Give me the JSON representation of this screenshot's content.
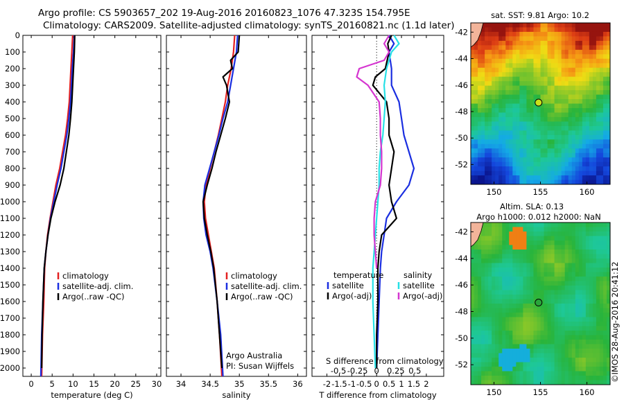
{
  "header": {
    "line1": "Argo profile: CS 5903657_202 19-Aug-2016 20160823_1076 47.323S 154.795E",
    "line2": "Climatology: CARS2009. Satellite-adjusted climatology: synTS_20160821.nc (1.1d later)"
  },
  "colors": {
    "climatology": "#e32020",
    "satellite": "#1a2ee0",
    "argo": "#000000",
    "cyan": "#26e0e6",
    "magenta": "#d535d0"
  },
  "chart_data": [
    {
      "type": "line",
      "xlabel": "temperature (deg C)",
      "xlim": [
        -2,
        31
      ],
      "ylim": [
        0,
        2050
      ],
      "xticks": [
        0,
        5,
        10,
        15,
        20,
        25,
        30
      ],
      "yticks": [
        0,
        100,
        200,
        300,
        400,
        500,
        600,
        700,
        800,
        900,
        1000,
        1100,
        1200,
        1300,
        1400,
        1500,
        1600,
        1700,
        1800,
        1900,
        2000
      ],
      "legend": [
        "climatology",
        "satellite-adj. clim.",
        "Argo(..raw -QC)"
      ],
      "series": [
        {
          "name": "climatology",
          "color": "#e32020",
          "depth": [
            0,
            100,
            200,
            300,
            400,
            500,
            600,
            700,
            800,
            900,
            1000,
            1100,
            1200,
            1300,
            1400,
            1600,
            1800,
            2050
          ],
          "values": [
            9.9,
            9.7,
            9.5,
            9.3,
            9.1,
            8.7,
            8.2,
            7.5,
            6.8,
            5.9,
            5.2,
            4.5,
            3.9,
            3.5,
            3.2,
            3.0,
            2.7,
            2.5
          ]
        },
        {
          "name": "satellite-adj. clim.",
          "color": "#1a2ee0",
          "depth": [
            0,
            100,
            200,
            300,
            400,
            500,
            600,
            700,
            800,
            900,
            1000,
            1100,
            1200,
            1300,
            1400,
            1600,
            1800,
            2050
          ],
          "values": [
            10.3,
            10.1,
            9.8,
            9.6,
            9.4,
            9.0,
            8.5,
            7.8,
            7.1,
            6.2,
            5.4,
            4.6,
            4.0,
            3.5,
            3.1,
            2.8,
            2.5,
            2.3
          ]
        },
        {
          "name": "Argo(..raw -QC)",
          "color": "#000000",
          "depth": [
            0,
            100,
            200,
            300,
            400,
            500,
            600,
            700,
            800,
            900,
            1000,
            1100,
            1200,
            1300,
            1400,
            1600,
            1800,
            2000
          ],
          "values": [
            10.4,
            10.3,
            10.1,
            9.9,
            9.7,
            9.4,
            9.0,
            8.4,
            7.8,
            6.9,
            5.7,
            4.7,
            4.0,
            3.5,
            3.1,
            2.8,
            2.6,
            2.5
          ]
        }
      ]
    },
    {
      "type": "line",
      "xlabel": "salinity",
      "xlim": [
        33.75,
        36.15
      ],
      "ylim": [
        0,
        2050
      ],
      "xticks": [
        34,
        34.5,
        35,
        35.5,
        36
      ],
      "legend": [
        "climatology",
        "satellite-adj. clim.",
        "Argo(..raw -QC)"
      ],
      "annotation": [
        "Argo Australia",
        "PI: Susan Wijffels"
      ],
      "series": [
        {
          "name": "climatology",
          "color": "#e32020",
          "depth": [
            0,
            100,
            200,
            300,
            400,
            500,
            600,
            700,
            800,
            900,
            1000,
            1100,
            1200,
            1300,
            1400,
            1600,
            1800,
            2050
          ],
          "values": [
            34.92,
            34.9,
            34.86,
            34.8,
            34.76,
            34.7,
            34.64,
            34.57,
            34.5,
            34.43,
            34.4,
            34.42,
            34.47,
            34.52,
            34.57,
            34.62,
            34.66,
            34.7
          ]
        },
        {
          "name": "satellite-adj. clim.",
          "color": "#1a2ee0",
          "depth": [
            0,
            100,
            200,
            300,
            400,
            500,
            600,
            700,
            800,
            900,
            1000,
            1100,
            1200,
            1300,
            1400,
            1600,
            1800,
            2050
          ],
          "values": [
            34.97,
            34.95,
            34.9,
            34.85,
            34.8,
            34.72,
            34.65,
            34.57,
            34.49,
            34.41,
            34.38,
            34.39,
            34.43,
            34.5,
            34.55,
            34.62,
            34.68,
            34.72
          ]
        },
        {
          "name": "Argo(..raw -QC)",
          "color": "#000000",
          "depth": [
            0,
            100,
            150,
            200,
            250,
            300,
            400,
            500,
            600,
            700,
            800,
            900,
            1000,
            1100,
            1200,
            1300,
            1400,
            1600,
            1800,
            2000
          ],
          "values": [
            35.0,
            34.98,
            34.85,
            34.88,
            34.72,
            34.78,
            34.83,
            34.76,
            34.68,
            34.6,
            34.53,
            34.45,
            34.38,
            34.4,
            34.45,
            34.51,
            34.56,
            34.62,
            34.66,
            34.7
          ]
        }
      ]
    },
    {
      "type": "line",
      "xlabel": "T difference from climatology",
      "x2label": "S difference from climatology",
      "xlim": [
        -2.6,
        2.7
      ],
      "ylim": [
        0,
        2050
      ],
      "xticks": [
        -2,
        -1.5,
        -1,
        -0.5,
        0,
        0.5,
        1,
        1.5,
        2
      ],
      "xticklabels": [
        "-2",
        "-1.5",
        "-1",
        "-0.5",
        "0",
        "0.5",
        "1",
        "1.5",
        "2"
      ],
      "x2ticks": [
        -0.5,
        -0.25,
        0,
        0.25,
        0.5
      ],
      "x2ticklabels": [
        "-0.5",
        "-0.25",
        "0",
        "0.25",
        "0.5"
      ],
      "legend_temperature": {
        "title": "temperature",
        "items": [
          "satellite",
          "Argo(-adj)"
        ]
      },
      "legend_salinity": {
        "title": "salinity",
        "items": [
          "satellite",
          "Argo(-adj)"
        ]
      },
      "series": [
        {
          "name": "T satellite",
          "color": "#1a2ee0",
          "depth": [
            0,
            50,
            100,
            200,
            300,
            400,
            500,
            600,
            700,
            800,
            900,
            1000,
            1100,
            1200,
            1300,
            1400,
            1600,
            1800,
            2000
          ],
          "values": [
            0.5,
            0.7,
            0.5,
            0.6,
            0.6,
            0.9,
            1.0,
            1.1,
            1.3,
            1.5,
            1.3,
            0.8,
            0.4,
            0.3,
            0.2,
            0.15,
            0.1,
            0.05,
            0.0
          ]
        },
        {
          "name": "T Argo(-adj)",
          "color": "#000000",
          "depth": [
            0,
            50,
            100,
            200,
            250,
            300,
            400,
            500,
            600,
            700,
            800,
            900,
            1000,
            1100,
            1200,
            1300,
            1400,
            1600,
            1800,
            2000
          ],
          "values": [
            0.6,
            0.45,
            0.5,
            0.35,
            -0.05,
            -0.15,
            0.4,
            0.5,
            0.5,
            0.7,
            0.6,
            0.5,
            0.6,
            0.8,
            0.2,
            0.1,
            0.05,
            0.05,
            0.0,
            0.0
          ]
        },
        {
          "name": "S satellite",
          "color": "#26e0e6",
          "depth": [
            0,
            50,
            100,
            200,
            300,
            400,
            500,
            600,
            700,
            800,
            900,
            1000,
            1100,
            1200,
            1300,
            1400,
            1600,
            1800,
            2000
          ],
          "values": [
            0.7,
            0.9,
            0.6,
            0.4,
            0.3,
            0.35,
            0.3,
            0.25,
            0.15,
            0.1,
            0.1,
            0.05,
            0.0,
            -0.05,
            -0.1,
            -0.15,
            -0.15,
            -0.1,
            -0.05
          ]
        },
        {
          "name": "S Argo(-adj)",
          "color": "#d535d0",
          "depth": [
            0,
            50,
            100,
            150,
            200,
            250,
            300,
            400,
            500,
            600,
            700,
            800,
            900,
            1000,
            1100,
            1200,
            1300,
            1400
          ],
          "values": [
            0.5,
            0.3,
            0.5,
            0.3,
            -0.7,
            -0.8,
            -0.35,
            0.1,
            0.15,
            0.15,
            0.2,
            0.2,
            0.15,
            -0.05,
            -0.1,
            -0.1,
            -0.05,
            0.0
          ]
        }
      ]
    },
    {
      "type": "heatmap",
      "title": "sat. SST: 9.81  Argo: 10.2",
      "xlim": [
        147.5,
        162.5
      ],
      "ylim": [
        -53.5,
        -41.3
      ],
      "xticks": [
        150,
        155,
        160
      ],
      "yticks": [
        -42,
        -44,
        -46,
        -48,
        -50,
        -52
      ],
      "marker": {
        "lon": 154.795,
        "lat": -47.323,
        "color": "#c9e11b"
      }
    },
    {
      "type": "heatmap",
      "title_line1": "Altim. SLA: 0.13",
      "title_line2": "Argo h1000: 0.012  h2000: NaN",
      "xlim": [
        147.5,
        162.5
      ],
      "ylim": [
        -53.5,
        -41.3
      ],
      "xticks": [
        150,
        155,
        160
      ],
      "yticks": [
        -42,
        -44,
        -46,
        -48,
        -50,
        -52
      ],
      "marker": {
        "lon": 154.795,
        "lat": -47.323,
        "color": "#2aa53a"
      }
    }
  ],
  "credit": "©IMOS 28-Aug-2016 20:41:12"
}
